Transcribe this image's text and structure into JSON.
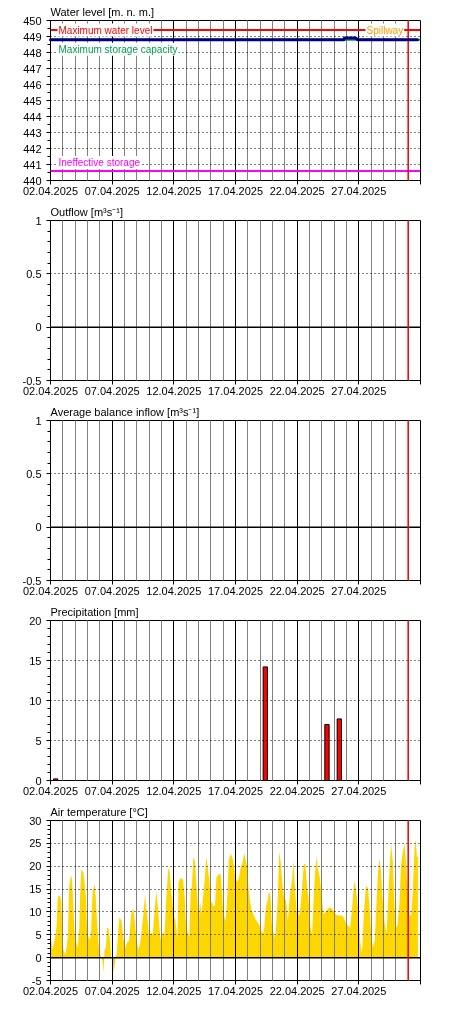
{
  "chart_data": [
    {
      "type": "line",
      "title": "Water level [m. n. m.]",
      "x": [
        "2025-04-02T00:00",
        "2025-04-25T19:00",
        "2025-04-25T20:00",
        "2025-04-26T18:00",
        "2025-04-26T22:00",
        "2025-05-01T18:00"
      ],
      "series": [
        {
          "color": "#000080",
          "values": [
            448.8,
            448.8,
            448.9,
            448.9,
            448.8,
            448.8
          ]
        }
      ],
      "xlim": [
        "2025-04-02",
        "2025-05-02"
      ],
      "xticks": [
        {
          "value": "2025-04-02",
          "label": "02.04.2025"
        },
        {
          "value": "2025-04-07",
          "label": "07.04.2025"
        },
        {
          "value": "2025-04-12",
          "label": "12.04.2025"
        },
        {
          "value": "2025-04-17",
          "label": "17.04.2025"
        },
        {
          "value": "2025-04-22",
          "label": "22.04.2025"
        },
        {
          "value": "2025-04-27",
          "label": "27.04.2025"
        },
        {
          "value": "2025-05-02",
          "label": null
        }
      ],
      "ylim": [
        440,
        450
      ],
      "yticks": [
        440,
        441,
        442,
        443,
        444,
        445,
        446,
        447,
        448,
        449,
        450
      ],
      "grid": true,
      "ref_lines": [
        {
          "axis": "y",
          "value": 449.4,
          "label": "Maximum water level",
          "color": "#ff0000"
        },
        {
          "axis": "y",
          "value": 448.8,
          "label": "Maximum storage capacity",
          "color": "#00a050"
        },
        {
          "axis": "y",
          "value": 440.6,
          "label": "Ineffective storage",
          "color": "#ff00ff"
        },
        {
          "axis": "x",
          "value": "2025-05-01",
          "color": "#ff0000"
        }
      ],
      "annotations": [
        {
          "text": "Spillway",
          "x": "2025-05-01",
          "y": 449.4
        }
      ]
    },
    {
      "type": "line",
      "title": "Outflow [m³s⁻¹]",
      "xlim": [
        "2025-04-02",
        "2025-05-02"
      ],
      "xticks": [
        {
          "value": "2025-04-02",
          "label": "02.04.2025"
        },
        {
          "value": "2025-04-07",
          "label": "07.04.2025"
        },
        {
          "value": "2025-04-12",
          "label": "12.04.2025"
        },
        {
          "value": "2025-04-17",
          "label": "17.04.2025"
        },
        {
          "value": "2025-04-22",
          "label": "22.04.2025"
        },
        {
          "value": "2025-04-27",
          "label": "27.04.2025"
        },
        {
          "value": "2025-05-02",
          "label": null
        }
      ],
      "ylim": [
        -0.5,
        1
      ],
      "yticks": [
        -0.5,
        0,
        0.5,
        1
      ],
      "grid": true,
      "ref_lines": [
        {
          "axis": "y",
          "value": 0,
          "color": "#000000"
        },
        {
          "axis": "x",
          "value": "2025-05-01",
          "color": "#ff0000"
        }
      ]
    },
    {
      "type": "line",
      "title": "Average balance inflow [m³s⁻¹]",
      "xlim": [
        "2025-04-02",
        "2025-05-02"
      ],
      "xticks": [
        {
          "value": "2025-04-02",
          "label": "02.04.2025"
        },
        {
          "value": "2025-04-07",
          "label": "07.04.2025"
        },
        {
          "value": "2025-04-12",
          "label": "12.04.2025"
        },
        {
          "value": "2025-04-17",
          "label": "17.04.2025"
        },
        {
          "value": "2025-04-22",
          "label": "22.04.2025"
        },
        {
          "value": "2025-04-27",
          "label": "27.04.2025"
        },
        {
          "value": "2025-05-02",
          "label": null
        }
      ],
      "ylim": [
        -0.5,
        1
      ],
      "yticks": [
        -0.5,
        0,
        0.5,
        1
      ],
      "grid": true,
      "ref_lines": [
        {
          "axis": "y",
          "value": 0,
          "color": "#000000"
        },
        {
          "axis": "x",
          "value": "2025-05-01",
          "color": "#ff0000"
        }
      ]
    },
    {
      "type": "bar",
      "title": "Precipitation [mm]",
      "x": [
        "2025-04-02T10:00",
        "2025-04-19T10:00",
        "2025-04-24T10:00",
        "2025-04-25T10:00"
      ],
      "values": [
        0.2,
        14.2,
        7.0,
        7.7
      ],
      "color": "#ff0000",
      "xlim": [
        "2025-04-02",
        "2025-05-02"
      ],
      "xticks": [
        {
          "value": "2025-04-02",
          "label": "02.04.2025"
        },
        {
          "value": "2025-04-07",
          "label": "07.04.2025"
        },
        {
          "value": "2025-04-12",
          "label": "12.04.2025"
        },
        {
          "value": "2025-04-17",
          "label": "17.04.2025"
        },
        {
          "value": "2025-04-22",
          "label": "22.04.2025"
        },
        {
          "value": "2025-04-27",
          "label": "27.04.2025"
        },
        {
          "value": "2025-05-02",
          "label": null
        }
      ],
      "ylim": [
        0,
        20
      ],
      "yticks": [
        0,
        5,
        10,
        15,
        20
      ],
      "grid": true,
      "ref_lines": [
        {
          "axis": "x",
          "value": "2025-05-01",
          "color": "#ff0000"
        }
      ]
    },
    {
      "type": "area",
      "title": "Air temperature [°C]",
      "color": "#ffd700",
      "x": [
        "2025-04-02T01:00",
        "2025-04-02T04:00",
        "2025-04-02T06:00",
        "2025-04-02T10:00",
        "2025-04-02T12:00",
        "2025-04-02T14:00",
        "2025-04-02T16:00",
        "2025-04-02T19:00",
        "2025-04-02T21:00",
        "2025-04-02T23:00",
        "2025-04-03T01:00",
        "2025-04-03T05:00",
        "2025-04-03T08:00",
        "2025-04-03T10:00",
        "2025-04-03T12:00",
        "2025-04-03T14:00",
        "2025-04-03T16:00",
        "2025-04-03T18:00",
        "2025-04-03T20:00",
        "2025-04-03T23:00",
        "2025-04-04T03:00",
        "2025-04-04T05:00",
        "2025-04-04T08:00",
        "2025-04-04T10:00",
        "2025-04-04T12:00",
        "2025-04-04T16:00",
        "2025-04-04T18:00",
        "2025-04-04T21:00",
        "2025-04-04T23:00",
        "2025-04-05T01:00",
        "2025-04-05T05:00",
        "2025-04-05T07:00",
        "2025-04-05T10:00",
        "2025-04-05T14:00",
        "2025-04-05T16:00",
        "2025-04-05T19:00",
        "2025-04-05T22:00",
        "2025-04-06T00:00",
        "2025-04-06T05:00",
        "2025-04-06T07:00",
        "2025-04-06T09:00",
        "2025-04-06T12:00",
        "2025-04-06T14:00",
        "2025-04-06T17:00",
        "2025-04-06T20:00",
        "2025-04-06T22:00",
        "2025-04-07T01:00",
        "2025-04-07T03:00",
        "2025-04-07T06:00",
        "2025-04-07T09:00",
        "2025-04-07T11:00",
        "2025-04-07T14:00",
        "2025-04-07T18:00",
        "2025-04-07T21:00",
        "2025-04-08T00:00",
        "2025-04-08T02:00",
        "2025-04-08T05:00",
        "2025-04-08T09:00",
        "2025-04-08T13:00",
        "2025-04-08T17:00",
        "2025-04-08T20:00",
        "2025-04-08T23:00",
        "2025-04-09T03:00",
        "2025-04-09T06:00",
        "2025-04-09T10:00",
        "2025-04-09T14:00",
        "2025-04-09T16:00",
        "2025-04-09T19:00",
        "2025-04-09T22:00",
        "2025-04-10T00:00",
        "2025-04-10T04:00",
        "2025-04-10T07:00",
        "2025-04-10T11:00",
        "2025-04-10T14:00",
        "2025-04-10T17:00",
        "2025-04-10T21:00",
        "2025-04-11T00:00",
        "2025-04-11T02:00",
        "2025-04-11T06:00",
        "2025-04-11T09:00",
        "2025-04-11T13:00",
        "2025-04-11T15:00",
        "2025-04-11T18:00",
        "2025-04-11T21:00",
        "2025-04-12T00:00",
        "2025-04-12T03:00",
        "2025-04-12T07:00",
        "2025-04-12T09:00",
        "2025-04-12T13:00",
        "2025-04-12T18:00",
        "2025-04-12T21:00",
        "2025-04-13T00:00",
        "2025-04-13T04:00",
        "2025-04-13T06:00",
        "2025-04-13T09:00",
        "2025-04-13T11:00",
        "2025-04-13T14:00",
        "2025-04-13T17:00",
        "2025-04-13T19:00",
        "2025-04-13T22:00",
        "2025-04-14T00:00",
        "2025-04-14T03:00",
        "2025-04-14T06:00",
        "2025-04-14T08:00",
        "2025-04-14T12:00",
        "2025-04-14T15:00",
        "2025-04-14T17:00",
        "2025-04-14T21:00",
        "2025-04-15T00:00",
        "2025-04-15T02:00",
        "2025-04-15T05:00",
        "2025-04-15T08:00",
        "2025-04-15T11:00",
        "2025-04-15T15:00",
        "2025-04-15T19:00",
        "2025-04-15T22:00",
        "2025-04-16T00:00",
        "2025-04-16T05:00",
        "2025-04-16T08:00",
        "2025-04-16T11:00",
        "2025-04-16T15:00",
        "2025-04-16T18:00",
        "2025-04-16T21:00",
        "2025-04-17T00:00",
        "2025-04-17T04:00",
        "2025-04-17T07:00",
        "2025-04-17T10:00",
        "2025-04-17T13:00",
        "2025-04-17T17:00",
        "2025-04-17T20:00",
        "2025-04-17T23:00",
        "2025-04-18T01:00",
        "2025-04-18T04:00",
        "2025-04-18T08:00",
        "2025-04-18T12:00",
        "2025-04-18T15:00",
        "2025-04-18T19:00",
        "2025-04-18T23:00",
        "2025-04-19T02:00",
        "2025-04-19T06:00",
        "2025-04-19T08:00",
        "2025-04-19T11:00",
        "2025-04-19T15:00",
        "2025-04-19T17:00",
        "2025-04-19T20:00",
        "2025-04-19T23:00",
        "2025-04-20T04:00",
        "2025-04-20T06:00",
        "2025-04-20T10:00",
        "2025-04-20T13:00",
        "2025-04-20T16:00",
        "2025-04-20T19:00",
        "2025-04-20T23:00",
        "2025-04-21T02:00",
        "2025-04-21T06:00",
        "2025-04-21T10:00",
        "2025-04-21T14:00",
        "2025-04-21T17:00",
        "2025-04-21T19:00",
        "2025-04-21T23:00",
        "2025-04-22T03:00",
        "2025-04-22T05:00",
        "2025-04-22T09:00",
        "2025-04-22T13:00",
        "2025-04-22T16:00",
        "2025-04-22T20:00",
        "2025-04-22T22:00",
        "2025-04-23T02:00",
        "2025-04-23T05:00",
        "2025-04-23T07:00",
        "2025-04-23T11:00",
        "2025-04-23T14:00",
        "2025-04-23T16:00",
        "2025-04-23T20:00",
        "2025-04-23T23:00",
        "2025-04-24T03:00",
        "2025-04-24T07:00",
        "2025-04-24T11:00",
        "2025-04-24T16:00",
        "2025-04-24T20:00",
        "2025-04-25T00:00",
        "2025-04-25T03:00",
        "2025-04-25T07:00",
        "2025-04-25T11:00",
        "2025-04-25T16:00",
        "2025-04-25T20:00",
        "2025-04-26T00:00",
        "2025-04-26T03:00",
        "2025-04-26T07:00",
        "2025-04-26T11:00",
        "2025-04-26T15:00",
        "2025-04-26T17:00",
        "2025-04-26T20:00",
        "2025-04-27T00:00",
        "2025-04-27T02:00",
        "2025-04-27T05:00",
        "2025-04-27T07:00",
        "2025-04-27T10:00",
        "2025-04-27T14:00",
        "2025-04-27T18:00",
        "2025-04-27T22:00",
        "2025-04-28T00:00",
        "2025-04-28T03:00",
        "2025-04-28T07:00",
        "2025-04-28T09:00",
        "2025-04-28T13:00",
        "2025-04-28T16:00",
        "2025-04-28T19:00",
        "2025-04-28T22:00",
        "2025-04-29T02:00",
        "2025-04-29T06:00",
        "2025-04-29T09:00",
        "2025-04-29T12:00",
        "2025-04-29T15:00",
        "2025-04-29T18:00",
        "2025-04-29T21:00",
        "2025-04-30T00:00",
        "2025-04-30T03:00",
        "2025-04-30T07:00",
        "2025-04-30T10:00",
        "2025-04-30T13:00",
        "2025-04-30T17:00",
        "2025-04-30T20:00",
        "2025-05-01T00:00",
        "2025-05-01T02:00",
        "2025-05-01T06:00",
        "2025-05-01T09:00",
        "2025-05-01T12:00",
        "2025-05-01T15:00",
        "2025-05-01T17:00",
        "2025-05-01T19:00"
      ],
      "values": [
        4.4,
        1.8,
        2.9,
        5.0,
        7.2,
        13.2,
        13.7,
        13.2,
        12.4,
        7.0,
        1.8,
        0.6,
        2.9,
        5.1,
        15.2,
        16.8,
        18.2,
        16.8,
        12.4,
        5.1,
        2.9,
        2.2,
        6.6,
        15.2,
        19.2,
        18.7,
        16.8,
        13.2,
        7.2,
        4.8,
        3.8,
        5.9,
        14.6,
        16.0,
        13.2,
        7.2,
        2.2,
        0.9,
        -0.7,
        -3.3,
        1.6,
        2.2,
        6.6,
        6.4,
        3.7,
        0.0,
        -0.7,
        -3.3,
        -0.7,
        1.1,
        4.4,
        8.8,
        8.1,
        5.1,
        2.6,
        2.2,
        3.3,
        3.7,
        9.5,
        10.8,
        8.1,
        4.0,
        1.8,
        2.9,
        6.6,
        10.8,
        13.9,
        10.2,
        7.2,
        4.4,
        5.5,
        5.1,
        11.1,
        14.6,
        11.0,
        5.1,
        2.9,
        5.5,
        5.1,
        12.4,
        19.2,
        19.8,
        15.7,
        12.4,
        8.8,
        8.4,
        4.0,
        16.5,
        17.4,
        17.1,
        13.2,
        6.6,
        5.1,
        4.8,
        15.2,
        15.2,
        22.0,
        21.2,
        17.6,
        12.8,
        7.0,
        12.4,
        9.5,
        12.1,
        16.8,
        22.1,
        20.5,
        17.2,
        12.4,
        12.1,
        11.3,
        11.3,
        17.6,
        18.2,
        18.3,
        13.9,
        9.5,
        8.1,
        13.2,
        21.4,
        22.8,
        21.8,
        20.1,
        16.8,
        16.7,
        17.6,
        19.8,
        20.5,
        22.9,
        21.2,
        19.8,
        15.7,
        12.4,
        10.2,
        9.2,
        8.4,
        7.7,
        7.0,
        5.9,
        5.3,
        6.6,
        11.0,
        12.8,
        14.6,
        13.5,
        7.0,
        4.4,
        5.1,
        12.4,
        23.1,
        20.9,
        16.5,
        12.4,
        12.8,
        8.1,
        13.9,
        16.8,
        21.2,
        16.5,
        10.2,
        9.5,
        9.2,
        14.6,
        20.5,
        20.5,
        14.6,
        13.2,
        6.6,
        5.1,
        10.2,
        19.0,
        22.1,
        19.8,
        17.6,
        14.3,
        9.5,
        9.9,
        10.6,
        11.0,
        10.6,
        10.2,
        9.5,
        9.2,
        9.2,
        9.2,
        8.4,
        7.3,
        7.0,
        6.6,
        11.0,
        16.8,
        15.7,
        13.5,
        9.5,
        4.4,
        1.1,
        2.2,
        10.2,
        15.7,
        15.2,
        9.2,
        5.1,
        2.2,
        3.7,
        8.8,
        18.3,
        21.6,
        19.0,
        13.2,
        7.7,
        5.1,
        13.2,
        19.8,
        24.9,
        21.2,
        12.4,
        6.6,
        7.0,
        11.7,
        20.1,
        22.7,
        25.0,
        20.1,
        12.4,
        9.2,
        9.2,
        14.6,
        23.4,
        25.8,
        22.0,
        22.0
      ],
      "xlim": [
        "2025-04-02",
        "2025-05-02"
      ],
      "xticks": [
        {
          "value": "2025-04-02",
          "label": "02.04.2025"
        },
        {
          "value": "2025-04-07",
          "label": "07.04.2025"
        },
        {
          "value": "2025-04-12",
          "label": "12.04.2025"
        },
        {
          "value": "2025-04-17",
          "label": "17.04.2025"
        },
        {
          "value": "2025-04-22",
          "label": "22.04.2025"
        },
        {
          "value": "2025-04-27",
          "label": "27.04.2025"
        },
        {
          "value": "2025-05-02",
          "label": null
        }
      ],
      "ylim": [
        -5,
        30
      ],
      "yticks": [
        -5,
        0,
        5,
        10,
        15,
        20,
        25,
        30
      ],
      "grid": true,
      "ref_lines": [
        {
          "axis": "y",
          "value": 0,
          "color": "#000000"
        },
        {
          "axis": "x",
          "value": "2025-05-01",
          "color": "#ff0000"
        }
      ]
    }
  ]
}
